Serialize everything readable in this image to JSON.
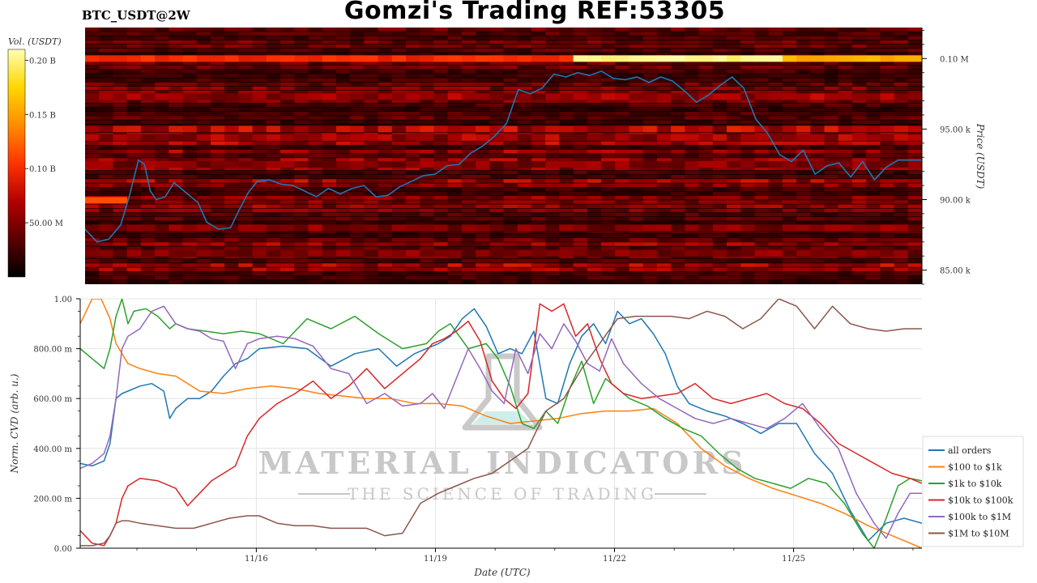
{
  "header": {
    "title": "Gomzi's Trading REF:53305",
    "symbol": "BTC_USDT@2W"
  },
  "watermark": {
    "brand": "MATERIAL INDICATORS",
    "tagline": "THE SCIENCE OF TRADING"
  },
  "chart_data": [
    {
      "type": "heatmap",
      "ylabel": "Price (USDT)",
      "y_ticks": [
        "85.00 k",
        "90.00 k",
        "95.00 k",
        "0.10 M"
      ],
      "y_tick_values": [
        85000,
        90000,
        95000,
        100000
      ],
      "ylim": [
        84000,
        102200
      ],
      "colorbar": {
        "label": "Vol. (USDT)",
        "ticks": [
          "0.20 B",
          "0.15 B",
          "0.10 B",
          "50.00 M"
        ],
        "tick_values": [
          200000000,
          150000000,
          100000000,
          50000000
        ],
        "range": [
          0,
          210000000
        ],
        "colors": [
          "#000000",
          "#5a0000",
          "#b40000",
          "#ff3300",
          "#ff8c00",
          "#ffd700",
          "#ffffb4"
        ]
      },
      "hot_levels": [
        {
          "price": 100000,
          "intensity": 0.85
        },
        {
          "price": 89950,
          "intensity": 0.55
        },
        {
          "price": 95000,
          "intensity": 0.35
        },
        {
          "price": 94400,
          "intensity": 0.3
        },
        {
          "price": 97300,
          "intensity": 0.3
        },
        {
          "price": 92500,
          "intensity": 0.25
        },
        {
          "price": 88000,
          "intensity": 0.25
        },
        {
          "price": 86200,
          "intensity": 0.25
        }
      ],
      "series": [
        {
          "color": "#1f77b4",
          "x": [
            0,
            0.2,
            0.4,
            0.6,
            0.75,
            0.9,
            1.0,
            1.1,
            1.2,
            1.35,
            1.5,
            1.7,
            1.9,
            2.05,
            2.25,
            2.45,
            2.6,
            2.75,
            2.9,
            3.1,
            3.3,
            3.5,
            3.7,
            3.9,
            4.1,
            4.3,
            4.5,
            4.7,
            4.9,
            5.1,
            5.3,
            5.5,
            5.7,
            5.9,
            6.1,
            6.3,
            6.5,
            6.7,
            6.9,
            7.1,
            7.3,
            7.5,
            7.7,
            7.9,
            8.1,
            8.3,
            8.5,
            8.7,
            8.9,
            9.1,
            9.3,
            9.5,
            9.7,
            9.9,
            10.1,
            10.3,
            10.5,
            10.7,
            10.9,
            11.1,
            11.3,
            11.5,
            11.7,
            11.9,
            12.1,
            12.3,
            12.5,
            12.7,
            12.9,
            13.1,
            13.3,
            13.5,
            13.7,
            13.9,
            14.1,
            14.1
          ],
          "y": [
            87900,
            87000,
            87200,
            88200,
            90300,
            92800,
            92500,
            90600,
            90000,
            90200,
            91200,
            90500,
            89800,
            88400,
            87900,
            88000,
            89300,
            90500,
            91300,
            91400,
            91100,
            91000,
            90600,
            90200,
            90800,
            90400,
            90800,
            91000,
            90200,
            90300,
            90900,
            91300,
            91700,
            91800,
            92400,
            92500,
            93300,
            93800,
            94500,
            95400,
            97800,
            97500,
            97900,
            98900,
            98700,
            99000,
            98800,
            99100,
            98600,
            98500,
            98700,
            98300,
            98700,
            98400,
            97700,
            96900,
            97400,
            98100,
            98700,
            97900,
            95700,
            94700,
            93200,
            92700,
            93500,
            91800,
            92400,
            92600,
            91600,
            92700,
            91400,
            92300,
            92800,
            92800,
            92800,
            92800
          ]
        }
      ]
    },
    {
      "type": "line",
      "xlabel": "Date (UTC)",
      "ylabel": "Norm. CVD (arb. u.)",
      "x_ticks": [
        "11/16",
        "11/19",
        "11/22",
        "11/25"
      ],
      "x_tick_values": [
        2.95,
        5.95,
        8.95,
        11.95
      ],
      "xlim": [
        0,
        14.1
      ],
      "y_ticks": [
        "0.00",
        "200.00 m",
        "400.00 m",
        "600.00 m",
        "800.00 m",
        "1.00"
      ],
      "y_tick_values": [
        0,
        0.2,
        0.4,
        0.6,
        0.8,
        1.0
      ],
      "ylim": [
        0,
        1.0
      ],
      "grid": true,
      "legend_position": "right",
      "series": [
        {
          "name": "all orders",
          "color": "#1f77b4",
          "x": [
            0,
            0.2,
            0.4,
            0.5,
            0.6,
            0.7,
            0.8,
            1.0,
            1.2,
            1.4,
            1.5,
            1.6,
            1.8,
            2.0,
            2.2,
            2.4,
            2.6,
            2.8,
            3.0,
            3.4,
            3.8,
            4.2,
            4.6,
            5.0,
            5.3,
            5.6,
            5.8,
            6.0,
            6.2,
            6.4,
            6.6,
            6.8,
            7.0,
            7.2,
            7.4,
            7.6,
            7.8,
            8.0,
            8.2,
            8.4,
            8.6,
            8.8,
            9.0,
            9.2,
            9.4,
            9.6,
            9.8,
            10.0,
            10.2,
            10.5,
            10.8,
            11.1,
            11.4,
            11.7,
            12.0,
            12.3,
            12.6,
            12.9,
            13.2,
            13.5,
            13.8,
            14.1
          ],
          "y": [
            0.34,
            0.33,
            0.35,
            0.42,
            0.6,
            0.62,
            0.63,
            0.65,
            0.66,
            0.63,
            0.52,
            0.56,
            0.6,
            0.6,
            0.63,
            0.69,
            0.74,
            0.76,
            0.8,
            0.81,
            0.8,
            0.73,
            0.78,
            0.8,
            0.73,
            0.78,
            0.8,
            0.82,
            0.85,
            0.92,
            0.96,
            0.89,
            0.78,
            0.8,
            0.78,
            0.87,
            0.6,
            0.58,
            0.74,
            0.85,
            0.9,
            0.82,
            0.95,
            0.9,
            0.92,
            0.86,
            0.78,
            0.65,
            0.58,
            0.55,
            0.53,
            0.5,
            0.46,
            0.5,
            0.5,
            0.38,
            0.3,
            0.15,
            0.03,
            0.1,
            0.12,
            0.1
          ]
        },
        {
          "name": "$100 to $1k",
          "color": "#ff7f0e",
          "x": [
            0,
            0.1,
            0.2,
            0.35,
            0.5,
            0.6,
            0.8,
            1.0,
            1.3,
            1.6,
            2.0,
            2.4,
            2.8,
            3.2,
            3.6,
            4.0,
            4.4,
            4.8,
            5.2,
            5.6,
            6.0,
            6.4,
            6.8,
            7.2,
            7.6,
            8.0,
            8.4,
            8.8,
            9.2,
            9.6,
            10.0,
            10.4,
            10.8,
            11.2,
            11.6,
            12.0,
            12.4,
            12.8,
            13.2,
            13.6,
            13.9,
            14.1
          ],
          "y": [
            0.9,
            0.95,
            1.0,
            1.0,
            0.92,
            0.82,
            0.74,
            0.72,
            0.7,
            0.69,
            0.63,
            0.62,
            0.64,
            0.65,
            0.64,
            0.62,
            0.61,
            0.6,
            0.6,
            0.58,
            0.58,
            0.57,
            0.53,
            0.5,
            0.51,
            0.52,
            0.54,
            0.55,
            0.55,
            0.56,
            0.5,
            0.4,
            0.33,
            0.28,
            0.24,
            0.21,
            0.18,
            0.14,
            0.09,
            0.05,
            0.02,
            0.0
          ]
        },
        {
          "name": "$1k to $10k",
          "color": "#2ca02c",
          "x": [
            0,
            0.2,
            0.4,
            0.5,
            0.6,
            0.7,
            0.8,
            0.9,
            1.1,
            1.3,
            1.5,
            1.6,
            1.8,
            2.1,
            2.4,
            2.7,
            3.0,
            3.4,
            3.8,
            4.2,
            4.6,
            5.0,
            5.4,
            5.8,
            6.0,
            6.2,
            6.5,
            6.8,
            7.0,
            7.2,
            7.4,
            7.6,
            7.8,
            8.0,
            8.2,
            8.4,
            8.6,
            8.8,
            9.0,
            9.2,
            9.5,
            9.8,
            10.1,
            10.4,
            10.7,
            11.0,
            11.3,
            11.6,
            11.9,
            12.2,
            12.5,
            12.8,
            13.1,
            13.3,
            13.5,
            13.7,
            13.9,
            14.1
          ],
          "y": [
            0.8,
            0.76,
            0.72,
            0.8,
            0.93,
            1.0,
            0.9,
            0.95,
            0.96,
            0.93,
            0.88,
            0.9,
            0.88,
            0.87,
            0.86,
            0.87,
            0.86,
            0.82,
            0.92,
            0.88,
            0.93,
            0.86,
            0.8,
            0.82,
            0.87,
            0.9,
            0.8,
            0.82,
            0.76,
            0.65,
            0.5,
            0.48,
            0.55,
            0.5,
            0.64,
            0.75,
            0.58,
            0.68,
            0.64,
            0.6,
            0.57,
            0.52,
            0.48,
            0.45,
            0.38,
            0.32,
            0.28,
            0.26,
            0.24,
            0.28,
            0.26,
            0.18,
            0.06,
            0.0,
            0.12,
            0.25,
            0.28,
            0.27
          ]
        },
        {
          "name": "$10k to $100k",
          "color": "#d62728",
          "x": [
            0,
            0.2,
            0.4,
            0.5,
            0.6,
            0.7,
            0.8,
            1.0,
            1.3,
            1.6,
            1.8,
            2.0,
            2.2,
            2.4,
            2.6,
            2.8,
            3.0,
            3.3,
            3.6,
            3.9,
            4.2,
            4.5,
            4.8,
            5.1,
            5.4,
            5.7,
            5.9,
            6.1,
            6.3,
            6.5,
            6.7,
            6.9,
            7.1,
            7.3,
            7.5,
            7.7,
            7.9,
            8.1,
            8.3,
            8.5,
            8.7,
            8.9,
            9.1,
            9.4,
            9.7,
            10.0,
            10.3,
            10.6,
            10.9,
            11.2,
            11.5,
            11.8,
            12.1,
            12.4,
            12.7,
            13.0,
            13.3,
            13.6,
            13.9,
            14.1
          ],
          "y": [
            0.07,
            0.02,
            0.01,
            0.05,
            0.1,
            0.2,
            0.25,
            0.28,
            0.27,
            0.24,
            0.17,
            0.22,
            0.27,
            0.3,
            0.33,
            0.45,
            0.52,
            0.58,
            0.62,
            0.67,
            0.6,
            0.65,
            0.72,
            0.64,
            0.7,
            0.76,
            0.82,
            0.84,
            0.87,
            0.91,
            0.83,
            0.67,
            0.6,
            0.56,
            0.62,
            0.98,
            0.95,
            0.98,
            0.85,
            0.9,
            0.76,
            0.66,
            0.62,
            0.6,
            0.61,
            0.62,
            0.66,
            0.6,
            0.58,
            0.6,
            0.62,
            0.58,
            0.56,
            0.5,
            0.42,
            0.38,
            0.34,
            0.3,
            0.28,
            0.26
          ]
        },
        {
          "name": "$100k to $1M",
          "color": "#9467bd",
          "x": [
            0,
            0.2,
            0.4,
            0.5,
            0.6,
            0.7,
            0.8,
            1.0,
            1.2,
            1.4,
            1.6,
            1.8,
            2.0,
            2.2,
            2.4,
            2.6,
            2.8,
            3.0,
            3.3,
            3.6,
            3.9,
            4.2,
            4.5,
            4.8,
            5.1,
            5.4,
            5.7,
            5.9,
            6.1,
            6.3,
            6.5,
            6.7,
            6.9,
            7.1,
            7.3,
            7.5,
            7.7,
            7.9,
            8.1,
            8.3,
            8.5,
            8.7,
            8.9,
            9.1,
            9.4,
            9.7,
            10.0,
            10.3,
            10.6,
            10.9,
            11.2,
            11.5,
            11.8,
            12.1,
            12.4,
            12.7,
            13.0,
            13.3,
            13.5,
            13.7,
            13.9,
            14.1
          ],
          "y": [
            0.32,
            0.34,
            0.38,
            0.45,
            0.6,
            0.8,
            0.85,
            0.88,
            0.95,
            0.97,
            0.9,
            0.88,
            0.87,
            0.84,
            0.83,
            0.72,
            0.82,
            0.84,
            0.85,
            0.84,
            0.81,
            0.72,
            0.7,
            0.58,
            0.62,
            0.57,
            0.58,
            0.62,
            0.56,
            0.68,
            0.8,
            0.72,
            0.63,
            0.58,
            0.8,
            0.7,
            0.86,
            0.8,
            0.9,
            0.83,
            0.74,
            0.71,
            0.84,
            0.74,
            0.66,
            0.6,
            0.56,
            0.52,
            0.5,
            0.52,
            0.5,
            0.48,
            0.52,
            0.58,
            0.48,
            0.4,
            0.22,
            0.1,
            0.04,
            0.14,
            0.22,
            0.22
          ]
        },
        {
          "name": "$1M to $10M",
          "color": "#8c564b",
          "x": [
            0,
            0.2,
            0.4,
            0.5,
            0.6,
            0.7,
            0.8,
            1.0,
            1.3,
            1.6,
            1.9,
            2.2,
            2.5,
            2.8,
            3.0,
            3.3,
            3.6,
            3.9,
            4.2,
            4.5,
            4.8,
            5.1,
            5.4,
            5.7,
            6.0,
            6.3,
            6.6,
            6.9,
            7.2,
            7.5,
            7.8,
            8.1,
            8.4,
            8.7,
            9.0,
            9.3,
            9.6,
            9.9,
            10.2,
            10.5,
            10.8,
            11.1,
            11.4,
            11.7,
            12.0,
            12.3,
            12.6,
            12.9,
            13.2,
            13.5,
            13.8,
            14.1
          ],
          "y": [
            0.01,
            0.01,
            0.02,
            0.05,
            0.1,
            0.11,
            0.11,
            0.1,
            0.09,
            0.08,
            0.08,
            0.1,
            0.12,
            0.13,
            0.13,
            0.1,
            0.09,
            0.09,
            0.08,
            0.08,
            0.08,
            0.05,
            0.06,
            0.18,
            0.22,
            0.25,
            0.28,
            0.3,
            0.35,
            0.4,
            0.55,
            0.6,
            0.72,
            0.82,
            0.92,
            0.93,
            0.93,
            0.93,
            0.92,
            0.95,
            0.93,
            0.88,
            0.92,
            1.0,
            0.97,
            0.88,
            0.97,
            0.9,
            0.88,
            0.87,
            0.88,
            0.88
          ]
        }
      ]
    }
  ]
}
